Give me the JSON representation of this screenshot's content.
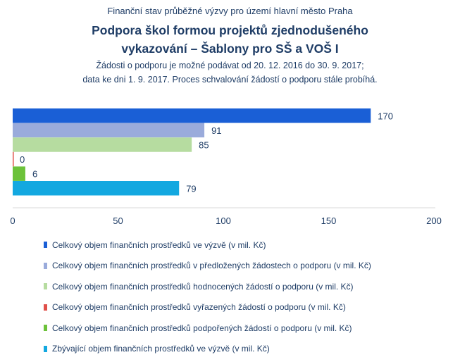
{
  "header": {
    "top_line": "Finanční stav průběžné výzvy pro území hlavní město Praha",
    "title_line1": "Podpora škol formou projektů zjednodušeného",
    "title_line2": "vykazování – Šablony pro SŠ a VOŠ I",
    "note_line1": "Žádosti o podporu je možné podávat od 20. 12. 2016 do 30. 9. 2017;",
    "note_line2": "data ke dni 1. 9. 2017. Proces schvalování žádostí o podporu stále probíhá."
  },
  "chart_data": {
    "type": "bar",
    "orientation": "horizontal",
    "series": [
      {
        "name": "Celkový objem finančních prostředků ve výzvě (v mil. Kč)",
        "value": 170,
        "color": "#1a5fd6"
      },
      {
        "name": "Celkový objem finančních prostředků v předložených žádostech o podporu (v mil. Kč)",
        "value": 91,
        "color": "#9aabdb"
      },
      {
        "name": "Celkový objem finančních prostředků hodnocených žádostí o podporu (v mil. Kč)",
        "value": 85,
        "color": "#b6dca0"
      },
      {
        "name": "Celkový objem finančních prostředků vyřazených žádostí o podporu (v mil. Kč)",
        "value": 0,
        "color": "#e0504a"
      },
      {
        "name": "Celkový objem finančních prostředků podpořených žádostí o podporu (v mil. Kč)",
        "value": 6,
        "color": "#6cc23a"
      },
      {
        "name": "Zbývající objem finančních prostředků ve výzvě (v mil. Kč)",
        "value": 79,
        "color": "#13a8e0"
      }
    ],
    "xlim": [
      0,
      200
    ],
    "xticks": [
      "0",
      "50",
      "100",
      "150",
      "200"
    ],
    "grid": false,
    "legend_position": "bottom"
  }
}
